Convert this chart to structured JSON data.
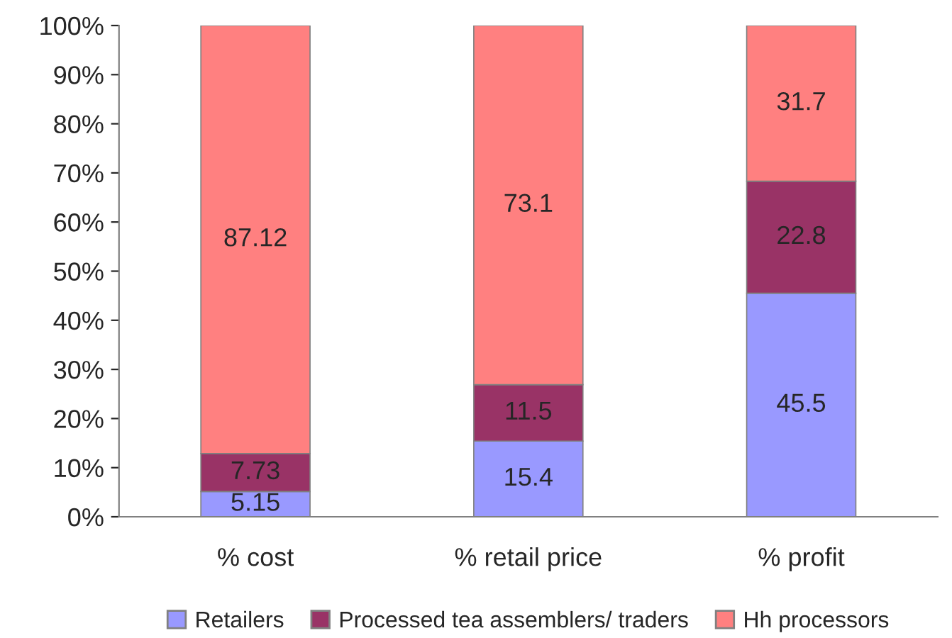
{
  "chart_data": {
    "type": "bar",
    "stacked": true,
    "categories": [
      "% cost",
      "% retail price",
      "% profit"
    ],
    "series": [
      {
        "name": "Retailers",
        "color": "#9999ff",
        "values": [
          5.15,
          15.4,
          45.5
        ]
      },
      {
        "name": "Processed tea assemblers/ traders",
        "color": "#993366",
        "values": [
          7.73,
          11.5,
          22.8
        ]
      },
      {
        "name": "Hh processors",
        "color": "#ff8080",
        "values": [
          87.12,
          73.1,
          31.7
        ]
      }
    ],
    "ylim": [
      0,
      100
    ],
    "yticks": [
      {
        "value": 0,
        "label": "0%"
      },
      {
        "value": 10,
        "label": "10%"
      },
      {
        "value": 20,
        "label": "20%"
      },
      {
        "value": 30,
        "label": "30%"
      },
      {
        "value": 40,
        "label": "40%"
      },
      {
        "value": 50,
        "label": "50%"
      },
      {
        "value": 60,
        "label": "60%"
      },
      {
        "value": 70,
        "label": "70%"
      },
      {
        "value": 80,
        "label": "80%"
      },
      {
        "value": 90,
        "label": "90%"
      },
      {
        "value": 100,
        "label": "100%"
      }
    ],
    "data_labels": true,
    "grid": false,
    "legend": "bottom"
  }
}
